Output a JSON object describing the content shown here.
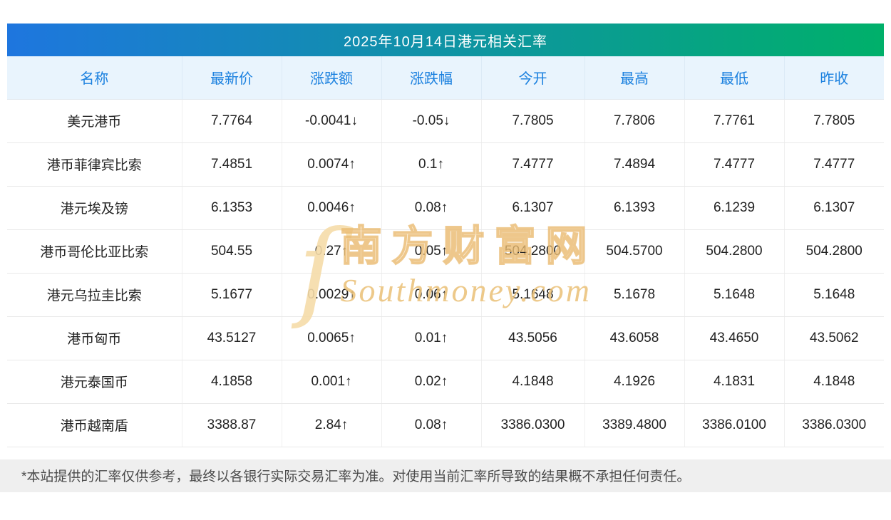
{
  "chart_data": {
    "type": "table",
    "title": "2025年10月14日港元相关汇率",
    "columns": [
      "名称",
      "最新价",
      "涨跌额",
      "涨跌幅",
      "今开",
      "最高",
      "最低",
      "昨收"
    ],
    "rows": [
      {
        "name": "美元港币",
        "latest": "7.7764",
        "change": "-0.0041↓",
        "change_pct": "-0.05↓",
        "open": "7.7805",
        "high": "7.7806",
        "low": "7.7761",
        "prev_close": "7.7805",
        "direction": "down"
      },
      {
        "name": "港币菲律宾比索",
        "latest": "7.4851",
        "change": "0.0074↑",
        "change_pct": "0.1↑",
        "open": "7.4777",
        "high": "7.4894",
        "low": "7.4777",
        "prev_close": "7.4777",
        "direction": "up"
      },
      {
        "name": "港元埃及镑",
        "latest": "6.1353",
        "change": "0.0046↑",
        "change_pct": "0.08↑",
        "open": "6.1307",
        "high": "6.1393",
        "low": "6.1239",
        "prev_close": "6.1307",
        "direction": "up"
      },
      {
        "name": "港币哥伦比亚比索",
        "latest": "504.55",
        "change": "0.27↑",
        "change_pct": "0.05↑",
        "open": "504.2800",
        "high": "504.5700",
        "low": "504.2800",
        "prev_close": "504.2800",
        "direction": "up"
      },
      {
        "name": "港元乌拉圭比索",
        "latest": "5.1677",
        "change": "0.0029↑",
        "change_pct": "0.06↑",
        "open": "5.1648",
        "high": "5.1678",
        "low": "5.1648",
        "prev_close": "5.1648",
        "direction": "up"
      },
      {
        "name": "港币匈币",
        "latest": "43.5127",
        "change": "0.0065↑",
        "change_pct": "0.01↑",
        "open": "43.5056",
        "high": "43.6058",
        "low": "43.4650",
        "prev_close": "43.5062",
        "direction": "up"
      },
      {
        "name": "港元泰国币",
        "latest": "4.1858",
        "change": "0.001↑",
        "change_pct": "0.02↑",
        "open": "4.1848",
        "high": "4.1926",
        "low": "4.1831",
        "prev_close": "4.1848",
        "direction": "up"
      },
      {
        "name": "港币越南盾",
        "latest": "3388.87",
        "change": "2.84↑",
        "change_pct": "0.08↑",
        "open": "3386.0300",
        "high": "3389.4800",
        "low": "3386.0100",
        "prev_close": "3386.0300",
        "direction": "up"
      }
    ]
  },
  "watermark": {
    "logo_glyph": "ſ",
    "cn": "南方财富网",
    "en": "Southmoney.com"
  },
  "footer": "*本站提供的汇率仅供参考，最终以各银行实际交易汇率为准。对使用当前汇率所导致的结果概不承担任何责任。",
  "colors": {
    "up": "#f50000",
    "down": "#0b9e00",
    "header_text": "#1a80df",
    "header_bg": "#e9f4fd",
    "title_gradient_start": "#1e76df",
    "title_gradient_end": "#00b06a",
    "watermark": "#ecc17a"
  }
}
